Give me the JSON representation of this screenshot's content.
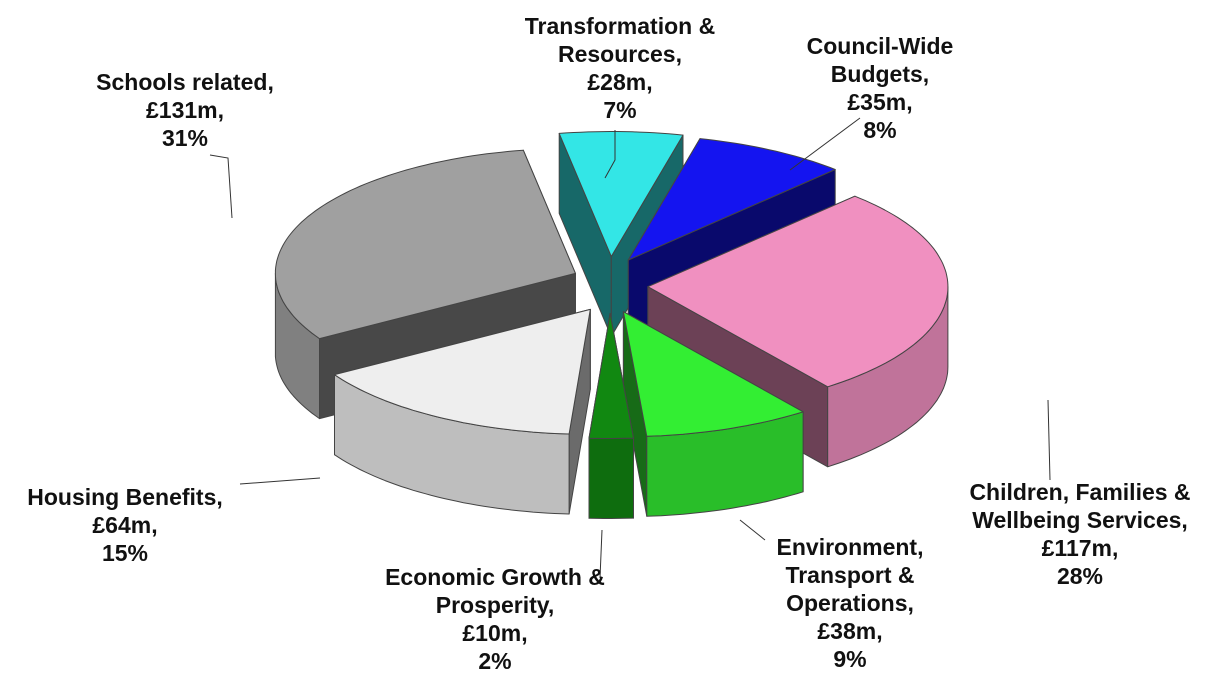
{
  "chart_data": {
    "type": "pie3d",
    "categories": [
      "Transformation & Resources",
      "Council-Wide Budgets",
      "Children, Families & Wellbeing Services",
      "Environment, Transport & Operations",
      "Economic Growth & Prosperity",
      "Housing Benefits",
      "Schools related"
    ],
    "values": [
      28,
      35,
      117,
      38,
      10,
      64,
      131
    ],
    "value_labels": [
      "£28m",
      "£35m",
      "£117m",
      "£38m",
      "£10m",
      "£64m",
      "£131m"
    ],
    "percentages": [
      7,
      8,
      28,
      9,
      2,
      15,
      31
    ],
    "percentage_labels": [
      "7%",
      "8%",
      "28%",
      "9%",
      "2%",
      "15%",
      "31%"
    ],
    "colors": [
      "#33e6e6",
      "#1414f0",
      "#f090c0",
      "#33ee33",
      "#118811",
      "#eeeeee",
      "#a0a0a0"
    ]
  }
}
